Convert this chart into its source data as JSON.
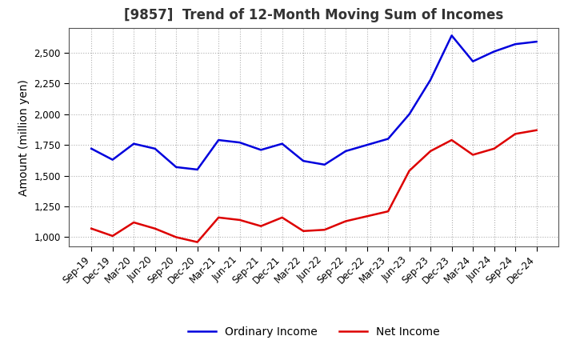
{
  "title": "[9857]  Trend of 12-Month Moving Sum of Incomes",
  "ylabel": "Amount (million yen)",
  "background_color": "#ffffff",
  "grid_color": "#b0b0b0",
  "ordinary_income_color": "#0000dd",
  "net_income_color": "#dd0000",
  "ordinary_income_label": "Ordinary Income",
  "net_income_label": "Net Income",
  "x_labels": [
    "Sep-19",
    "Dec-19",
    "Mar-20",
    "Jun-20",
    "Sep-20",
    "Dec-20",
    "Mar-21",
    "Jun-21",
    "Sep-21",
    "Dec-21",
    "Mar-22",
    "Jun-22",
    "Sep-22",
    "Dec-22",
    "Mar-23",
    "Jun-23",
    "Sep-23",
    "Dec-23",
    "Mar-24",
    "Jun-24",
    "Sep-24",
    "Dec-24"
  ],
  "ordinary_income": [
    1720,
    1630,
    1760,
    1720,
    1570,
    1550,
    1790,
    1770,
    1710,
    1760,
    1620,
    1590,
    1700,
    1750,
    1800,
    2000,
    2280,
    2640,
    2430,
    2510,
    2570,
    2590
  ],
  "net_income": [
    1070,
    1010,
    1120,
    1070,
    1000,
    960,
    1160,
    1140,
    1090,
    1160,
    1050,
    1060,
    1130,
    1170,
    1210,
    1540,
    1700,
    1790,
    1670,
    1720,
    1840,
    1870
  ],
  "ylim_min": 925,
  "ylim_max": 2700,
  "yticks": [
    1000,
    1250,
    1500,
    1750,
    2000,
    2250,
    2500
  ],
  "title_fontsize": 12,
  "axis_label_fontsize": 10,
  "tick_fontsize": 8.5,
  "legend_fontsize": 10,
  "line_width": 1.8
}
